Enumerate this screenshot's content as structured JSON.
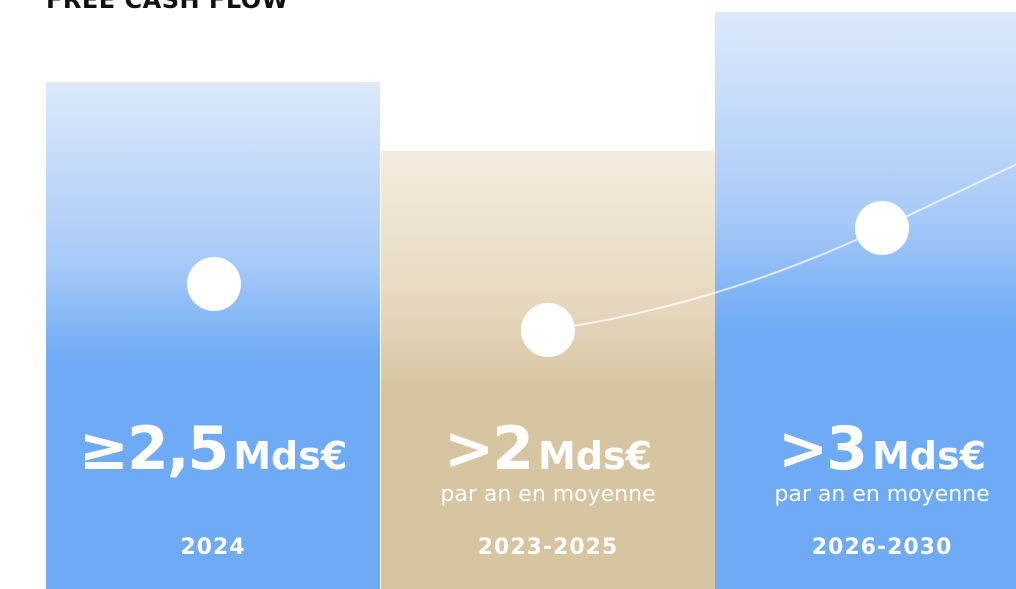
{
  "title": "FREE CASH FLOW",
  "columns": [
    {
      "value": "≥2,5",
      "unit": "Mds€",
      "period": "2024"
    },
    {
      "value": ">2",
      "unit": "Mds€",
      "note": "par an en moyenne",
      "period": "2023-2025"
    },
    {
      "value": ">3",
      "unit": "Mds€",
      "note": "par an en moyenne",
      "period": "2026-2030"
    }
  ]
}
